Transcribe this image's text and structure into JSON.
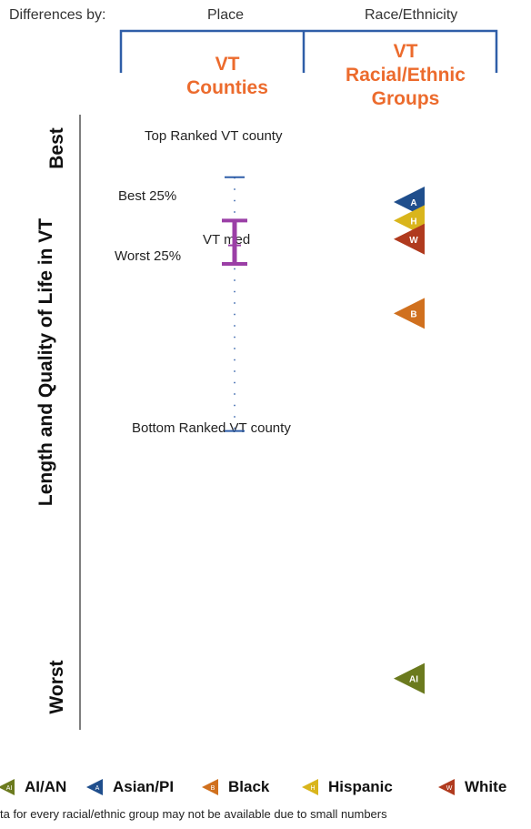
{
  "header": {
    "differences_label": "Differences by:",
    "place_label": "Place",
    "race_label": "Race/Ethnicity"
  },
  "sections": {
    "counties_line1": "VT",
    "counties_line2": "Counties",
    "groups_line1": "VT",
    "groups_line2": "Racial/Ethnic",
    "groups_line3": "Groups"
  },
  "y_axis": {
    "title": "Length and Quality of Life in VT",
    "best": "Best",
    "worst": "Worst"
  },
  "county_labels": {
    "top": "Top Ranked VT county",
    "best25": "Best 25%",
    "median": "VT med",
    "worst25": "Worst 25%",
    "bottom": "Bottom Ranked VT county"
  },
  "legend": [
    {
      "key": "AI",
      "label": "AI/AN",
      "color": "#6b7a1e"
    },
    {
      "key": "A",
      "label": "Asian/PI",
      "color": "#1f4e8c"
    },
    {
      "key": "B",
      "label": "Black",
      "color": "#d0701e"
    },
    {
      "key": "H",
      "label": "Hispanic",
      "color": "#d9b51c"
    },
    {
      "key": "W",
      "label": "White",
      "color": "#b03a1e"
    }
  ],
  "footnote": "ta for every racial/ethnic group may not be available due to small numbers",
  "colors": {
    "bracket": "#2f5ea8",
    "range": "#2f5ea8",
    "quartile": "#9b3fa6",
    "accent": "#ec6b2d",
    "axis_line": "#555555"
  },
  "chart_data": {
    "type": "scatter",
    "x_categories": [
      "VT Counties",
      "VT Racial/Ethnic Groups"
    ],
    "ylabel": "Length and Quality of Life in VT",
    "y_scale": "position from Best (0) to Worst (100)",
    "county_range": {
      "top": 11,
      "best25": 18,
      "median": 22,
      "worst25": 25,
      "bottom": 52
    },
    "groups": [
      {
        "key": "A",
        "label": "Asian/PI",
        "position": 15
      },
      {
        "key": "H",
        "label": "Hispanic",
        "position": 18
      },
      {
        "key": "W",
        "label": "White",
        "position": 21
      },
      {
        "key": "B",
        "label": "Black",
        "position": 33
      },
      {
        "key": "AI",
        "label": "AI/AN",
        "position": 92
      }
    ]
  }
}
